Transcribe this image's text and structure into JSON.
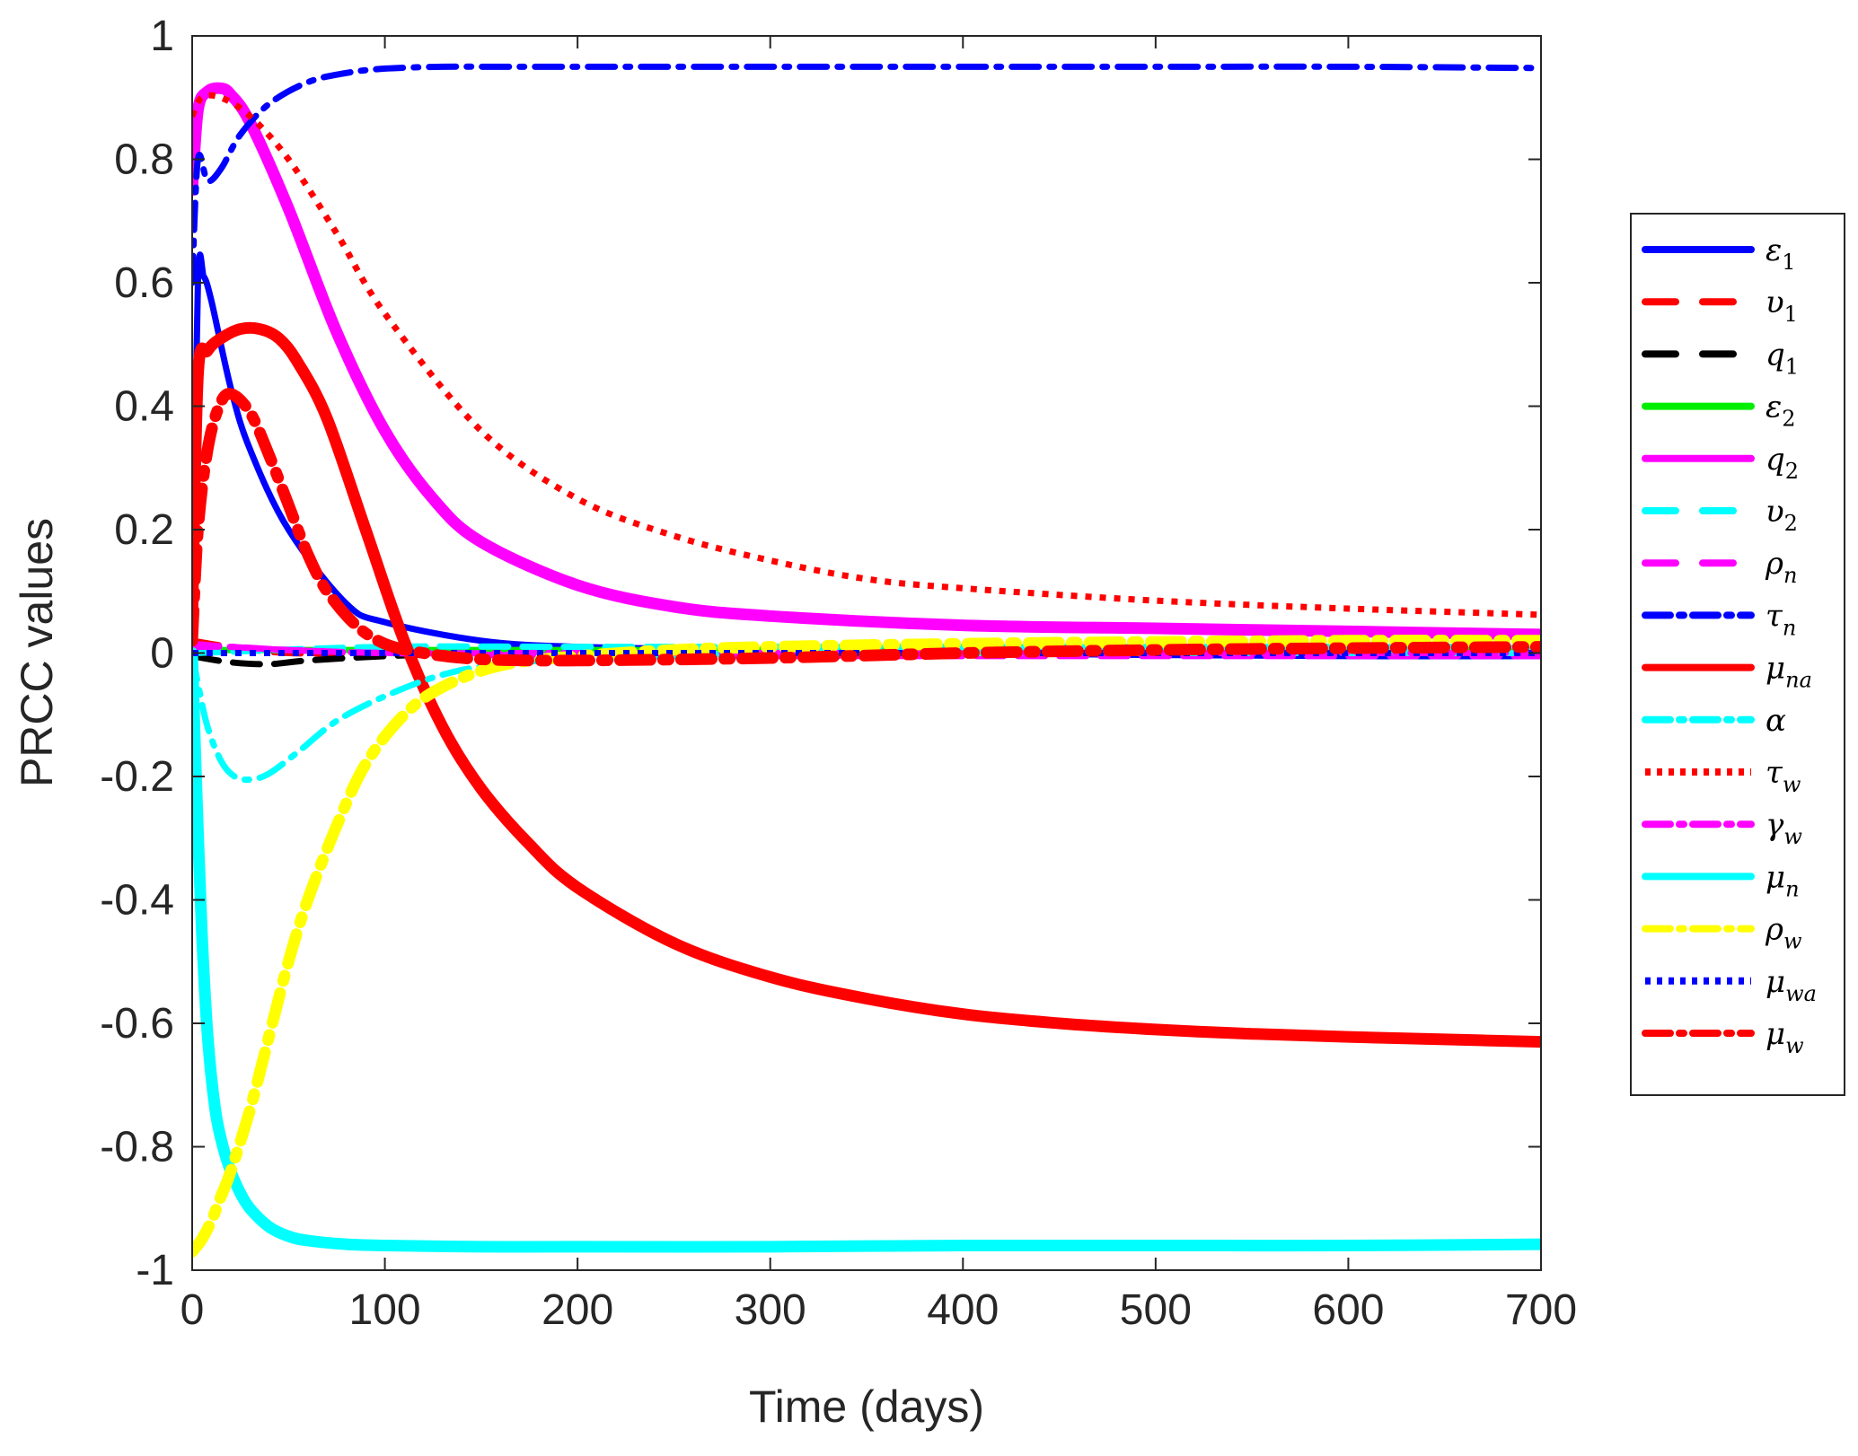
{
  "chart_data": {
    "type": "line",
    "title": "",
    "xlabel": "Time (days)",
    "ylabel": "PRCC values",
    "xlim": [
      0,
      700
    ],
    "ylim": [
      -1,
      1
    ],
    "xticks": [
      0,
      100,
      200,
      300,
      400,
      500,
      600,
      700
    ],
    "yticks": [
      -1,
      -0.8,
      -0.6,
      -0.4,
      -0.2,
      0,
      0.2,
      0.4,
      0.6,
      0.8,
      1
    ],
    "xtick_labels": [
      "0",
      "100",
      "200",
      "300",
      "400",
      "500",
      "600",
      "700"
    ],
    "ytick_labels": [
      "-1",
      "-0.8",
      "-0.6",
      "-0.4",
      "-0.2",
      "0",
      "0.2",
      "0.4",
      "0.6",
      "0.8",
      "1"
    ],
    "grid": false,
    "legend_position": "right-outside",
    "series": [
      {
        "name": "ε1",
        "label_base": "ε",
        "label_sub": "1",
        "color": "#0000ff",
        "style": "solid",
        "weight": "normal",
        "x": [
          0,
          3,
          6,
          10,
          20,
          30,
          50,
          80,
          100,
          150,
          200,
          300,
          400,
          500,
          600,
          700
        ],
        "y": [
          0.05,
          0.6,
          0.61,
          0.57,
          0.43,
          0.33,
          0.2,
          0.08,
          0.05,
          0.02,
          0.01,
          0.005,
          0.0,
          -0.003,
          -0.005,
          -0.005
        ]
      },
      {
        "name": "υ1",
        "label_base": "υ",
        "label_sub": "1",
        "color": "#ff0000",
        "style": "dash",
        "weight": "normal",
        "x": [
          0,
          20,
          50,
          100,
          200,
          300,
          400,
          500,
          600,
          700
        ],
        "y": [
          0.02,
          0.01,
          0.0,
          0.0,
          0.0,
          0.0,
          0.0,
          0.0,
          0.0,
          0.0
        ]
      },
      {
        "name": "q1",
        "label_base": "q",
        "label_sub": "1",
        "color": "#000000",
        "style": "dash",
        "weight": "normal",
        "x": [
          0,
          20,
          40,
          60,
          100,
          150,
          200,
          300,
          400,
          500,
          600,
          700
        ],
        "y": [
          -0.005,
          -0.015,
          -0.018,
          -0.012,
          -0.005,
          0.0,
          0.0,
          0.0,
          0.0,
          0.0,
          0.0,
          0.0
        ]
      },
      {
        "name": "ε2",
        "label_base": "ε",
        "label_sub": "2",
        "color": "#00ee00",
        "style": "solid",
        "weight": "normal",
        "x": [
          0,
          100,
          200,
          300,
          400,
          500,
          600,
          700
        ],
        "y": [
          0.005,
          0.005,
          0.005,
          0.005,
          0.005,
          0.005,
          0.005,
          0.005
        ]
      },
      {
        "name": "q2",
        "label_base": "q",
        "label_sub": "2",
        "color": "#ff00ff",
        "style": "solid",
        "weight": "thick",
        "x": [
          0,
          3,
          8,
          15,
          20,
          30,
          50,
          75,
          100,
          125,
          150,
          200,
          250,
          300,
          400,
          500,
          600,
          700
        ],
        "y": [
          0.75,
          0.88,
          0.91,
          0.915,
          0.905,
          0.86,
          0.72,
          0.52,
          0.36,
          0.25,
          0.18,
          0.11,
          0.075,
          0.06,
          0.045,
          0.04,
          0.035,
          0.03
        ]
      },
      {
        "name": "υ2",
        "label_base": "υ",
        "label_sub": "2",
        "color": "#00ffff",
        "style": "dash",
        "weight": "normal",
        "x": [
          0,
          100,
          200,
          300,
          400,
          500,
          600,
          700
        ],
        "y": [
          0.0,
          0.01,
          0.01,
          0.01,
          0.01,
          0.01,
          0.01,
          0.01
        ]
      },
      {
        "name": "ρn",
        "label_base": "ρ",
        "label_sub": "n",
        "color": "#ff00ff",
        "style": "dash",
        "weight": "normal",
        "x": [
          0,
          20,
          50,
          100,
          200,
          300,
          400,
          500,
          600,
          700
        ],
        "y": [
          0.015,
          0.01,
          0.005,
          0.0,
          -0.005,
          -0.005,
          -0.005,
          -0.005,
          -0.005,
          -0.005
        ]
      },
      {
        "name": "τn",
        "label_base": "τ",
        "label_sub": "n",
        "color": "#0000ff",
        "style": "dashdot",
        "weight": "normal",
        "x": [
          0,
          3,
          8,
          15,
          25,
          40,
          60,
          80,
          100,
          130,
          160,
          200,
          300,
          400,
          500,
          600,
          700
        ],
        "y": [
          0.6,
          0.8,
          0.765,
          0.785,
          0.84,
          0.89,
          0.925,
          0.94,
          0.947,
          0.95,
          0.95,
          0.95,
          0.95,
          0.95,
          0.95,
          0.95,
          0.948
        ]
      },
      {
        "name": "μna",
        "label_base": "μ",
        "label_sub": "na",
        "color": "#ff0000",
        "style": "solid",
        "weight": "thick",
        "x": [
          0,
          3,
          8,
          15,
          25,
          35,
          45,
          55,
          70,
          90,
          110,
          130,
          150,
          175,
          200,
          250,
          300,
          350,
          400,
          450,
          500,
          550,
          600,
          650,
          700
        ],
        "y": [
          0.05,
          0.45,
          0.49,
          0.51,
          0.525,
          0.525,
          0.51,
          0.47,
          0.38,
          0.2,
          0.02,
          -0.12,
          -0.22,
          -0.31,
          -0.38,
          -0.47,
          -0.525,
          -0.56,
          -0.585,
          -0.6,
          -0.61,
          -0.617,
          -0.622,
          -0.626,
          -0.63
        ]
      },
      {
        "name": "α",
        "label_base": "α",
        "label_sub": "",
        "color": "#00ffff",
        "style": "dashdot",
        "weight": "normal",
        "x": [
          0,
          3,
          8,
          15,
          22,
          30,
          40,
          55,
          75,
          100,
          130,
          160,
          200,
          300,
          400,
          500,
          600,
          700
        ],
        "y": [
          0.0,
          -0.05,
          -0.12,
          -0.175,
          -0.2,
          -0.205,
          -0.195,
          -0.16,
          -0.11,
          -0.07,
          -0.035,
          -0.018,
          -0.01,
          0.0,
          0.0,
          0.0,
          0.0,
          0.0
        ]
      },
      {
        "name": "τw",
        "label_base": "τ",
        "label_sub": "w",
        "color": "#ff0000",
        "style": "dot",
        "weight": "normal",
        "x": [
          0,
          5,
          15,
          30,
          50,
          75,
          100,
          150,
          200,
          250,
          300,
          350,
          400,
          500,
          600,
          700
        ],
        "y": [
          0.87,
          0.9,
          0.9,
          0.87,
          0.8,
          0.68,
          0.55,
          0.36,
          0.25,
          0.19,
          0.15,
          0.12,
          0.105,
          0.085,
          0.072,
          0.062
        ]
      },
      {
        "name": "γw",
        "label_base": "γ",
        "label_sub": "w",
        "color": "#ff00ff",
        "style": "dashdot",
        "weight": "normal",
        "x": [
          0,
          20,
          50,
          100,
          200,
          300,
          400,
          500,
          600,
          700
        ],
        "y": [
          0.01,
          0.01,
          0.005,
          0.0,
          0.0,
          0.0,
          0.0,
          0.0,
          0.0,
          0.0
        ]
      },
      {
        "name": "μn",
        "label_base": "μ",
        "label_sub": "n",
        "color": "#00ffff",
        "style": "solid",
        "weight": "thick",
        "x": [
          0,
          2,
          5,
          8,
          12,
          16,
          20,
          25,
          30,
          40,
          50,
          60,
          80,
          100,
          150,
          200,
          300,
          400,
          500,
          600,
          700
        ],
        "y": [
          0.0,
          -0.2,
          -0.45,
          -0.62,
          -0.74,
          -0.8,
          -0.84,
          -0.875,
          -0.9,
          -0.93,
          -0.945,
          -0.952,
          -0.958,
          -0.96,
          -0.962,
          -0.962,
          -0.962,
          -0.96,
          -0.96,
          -0.96,
          -0.958
        ]
      },
      {
        "name": "ρw",
        "label_base": "ρ",
        "label_sub": "w",
        "color": "#ffff00",
        "style": "dashdot",
        "weight": "thick",
        "x": [
          0,
          5,
          10,
          15,
          20,
          30,
          40,
          50,
          60,
          75,
          90,
          110,
          130,
          160,
          200,
          250,
          300,
          400,
          500,
          600,
          700
        ],
        "y": [
          -0.97,
          -0.95,
          -0.92,
          -0.88,
          -0.84,
          -0.74,
          -0.62,
          -0.5,
          -0.4,
          -0.28,
          -0.18,
          -0.1,
          -0.055,
          -0.02,
          -0.005,
          0.005,
          0.01,
          0.015,
          0.018,
          0.02,
          0.02
        ]
      },
      {
        "name": "μwa",
        "label_base": "μ",
        "label_sub": "wa",
        "color": "#0000ff",
        "style": "dot",
        "weight": "normal",
        "x": [
          0,
          100,
          200,
          300,
          400,
          500,
          600,
          700
        ],
        "y": [
          0.0,
          0.0,
          0.0,
          0.0,
          0.0,
          0.0,
          0.0,
          0.0
        ]
      },
      {
        "name": "μw",
        "label_base": "μ",
        "label_sub": "w",
        "color": "#ff0000",
        "style": "dashdot",
        "weight": "thick",
        "x": [
          0,
          3,
          8,
          14,
          20,
          30,
          40,
          50,
          60,
          70,
          85,
          100,
          120,
          150,
          200,
          300,
          400,
          500,
          600,
          700
        ],
        "y": [
          0.02,
          0.2,
          0.33,
          0.4,
          0.42,
          0.39,
          0.32,
          0.24,
          0.16,
          0.1,
          0.045,
          0.015,
          0.0,
          -0.01,
          -0.012,
          -0.008,
          0.0,
          0.005,
          0.008,
          0.01
        ]
      }
    ]
  }
}
